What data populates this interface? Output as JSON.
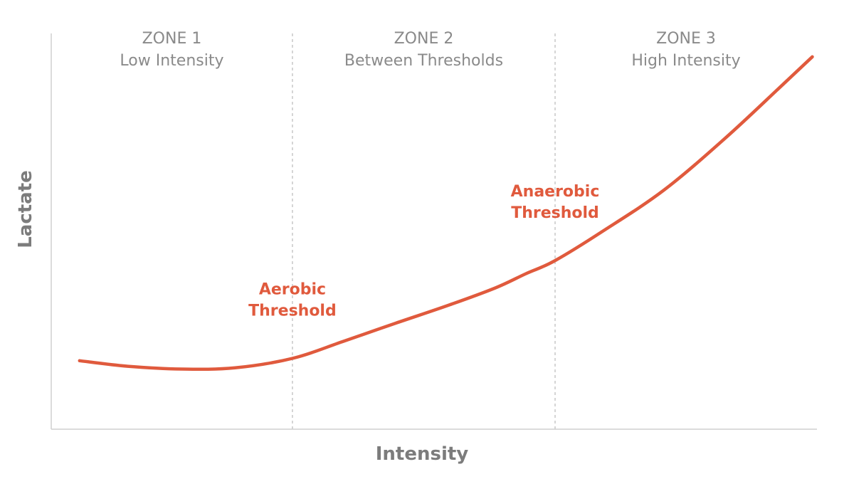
{
  "chart_data": {
    "type": "line",
    "xlabel": "Intensity",
    "ylabel": "Lactate",
    "xlim": [
      0,
      100
    ],
    "ylim": [
      0,
      100
    ],
    "zones": [
      {
        "title": "ZONE 1",
        "subtitle": "Low Intensity"
      },
      {
        "title": "ZONE 2",
        "subtitle": "Between Thresholds"
      },
      {
        "title": "ZONE 3",
        "subtitle": "High Intensity"
      }
    ],
    "thresholds": [
      {
        "name": "Aerobic Threshold",
        "lines": [
          "Aerobic",
          "Threshold"
        ],
        "x": 31.5
      },
      {
        "name": "Anaerobic Threshold",
        "lines": [
          "Anaerobic",
          "Threshold"
        ],
        "x": 65.8
      }
    ],
    "series": [
      {
        "x": [
          3.7,
          10,
          17,
          24,
          31.5,
          38,
          45,
          52,
          58,
          62,
          65.8,
          72,
          80,
          88,
          95,
          99.4
        ],
        "y": [
          17.3,
          15.9,
          15.2,
          15.5,
          17.9,
          22.1,
          26.8,
          31.4,
          35.7,
          39.3,
          42.6,
          50.0,
          60.4,
          73.5,
          86.1,
          94.1
        ]
      }
    ],
    "colors": {
      "curve": "#e05a3d",
      "annotation": "#e05a3d",
      "zone_text": "#8a8a8a",
      "axis_text": "#7c7c7c",
      "axis_line": "#cfcfcf",
      "divider": "#b9b9b9"
    },
    "grid": false,
    "legend": "none"
  }
}
